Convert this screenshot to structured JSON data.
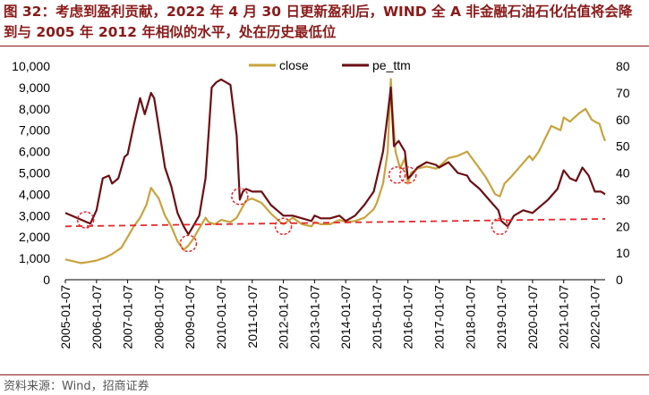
{
  "header": {
    "title": "图 32：考虑到盈利贡献，2022 年 4 月 30 日更新盈利后，WIND 全 A 非金融石油石化估值将会降到与 2005 年 2012 年相似的水平，处在历史最低位"
  },
  "footer": {
    "source": "资料来源：Wind，招商证券"
  },
  "colors": {
    "close": "#C9A33D",
    "pe_ttm": "#6B0F14",
    "reference": "#E8262C",
    "title": "#8B1A1A"
  },
  "chart_data": {
    "type": "line",
    "title": "",
    "legend": {
      "position": "top-center",
      "entries": [
        "close",
        "pe_ttm"
      ]
    },
    "categories": [
      "2005-01-07",
      "2006-01-07",
      "2007-01-07",
      "2008-01-07",
      "2009-01-07",
      "2010-01-07",
      "2011-01-07",
      "2012-01-07",
      "2013-01-07",
      "2014-01-07",
      "2015-01-07",
      "2016-01-07",
      "2017-01-07",
      "2018-01-07",
      "2019-01-07",
      "2020-01-07",
      "2021-01-07",
      "2022-01-07"
    ],
    "x": {
      "min": 2005.0,
      "max": 2022.33
    },
    "y_left": {
      "min": 0,
      "max": 10000,
      "ticks": [
        "0",
        "1,000",
        "2,000",
        "3,000",
        "4,000",
        "5,000",
        "6,000",
        "7,000",
        "8,000",
        "9,000",
        "10,000"
      ]
    },
    "y_right": {
      "min": 0,
      "max": 80,
      "ticks": [
        "0",
        "10",
        "20",
        "30",
        "40",
        "50",
        "60",
        "70",
        "80"
      ]
    },
    "series": [
      {
        "name": "close",
        "axis": "left",
        "x": [
          2005.0,
          2005.3,
          2005.5,
          2005.7,
          2006.0,
          2006.3,
          2006.5,
          2006.8,
          2007.0,
          2007.2,
          2007.4,
          2007.6,
          2007.75,
          2007.85,
          2008.0,
          2008.2,
          2008.4,
          2008.6,
          2008.8,
          2008.95,
          2009.1,
          2009.3,
          2009.5,
          2009.6,
          2009.8,
          2010.0,
          2010.3,
          2010.5,
          2010.8,
          2011.0,
          2011.3,
          2011.6,
          2011.9,
          2012.0,
          2012.3,
          2012.6,
          2012.9,
          2013.0,
          2013.2,
          2013.5,
          2013.8,
          2014.0,
          2014.3,
          2014.6,
          2014.9,
          2015.0,
          2015.2,
          2015.35,
          2015.45,
          2015.5,
          2015.6,
          2015.75,
          2015.9,
          2016.0,
          2016.1,
          2016.3,
          2016.6,
          2016.9,
          2017.0,
          2017.3,
          2017.6,
          2017.9,
          2018.0,
          2018.2,
          2018.5,
          2018.8,
          2018.95,
          2019.1,
          2019.3,
          2019.6,
          2019.9,
          2020.0,
          2020.2,
          2020.4,
          2020.6,
          2020.9,
          2021.0,
          2021.2,
          2021.5,
          2021.7,
          2021.9,
          2022.0,
          2022.15,
          2022.25,
          2022.33
        ],
        "y": [
          950,
          850,
          780,
          820,
          900,
          1050,
          1200,
          1500,
          2000,
          2500,
          2900,
          3500,
          4300,
          4100,
          3800,
          3000,
          2500,
          1800,
          1400,
          1600,
          1900,
          2400,
          2900,
          2700,
          2600,
          2800,
          2700,
          2900,
          3700,
          3800,
          3600,
          3100,
          2700,
          2600,
          2900,
          2600,
          2500,
          2700,
          2600,
          2600,
          2800,
          2700,
          2750,
          2900,
          3300,
          3600,
          4500,
          6000,
          9400,
          8000,
          6000,
          5200,
          5700,
          4500,
          5000,
          5200,
          5300,
          5200,
          5300,
          5700,
          5800,
          6000,
          5800,
          5400,
          4800,
          4000,
          3900,
          4500,
          4800,
          5300,
          5800,
          5600,
          6000,
          6600,
          7200,
          7000,
          7600,
          7400,
          7800,
          8000,
          7500,
          7400,
          7300,
          6800,
          6500
        ]
      },
      {
        "name": "pe_ttm",
        "axis": "right",
        "x": [
          2005.0,
          2005.2,
          2005.4,
          2005.6,
          2005.8,
          2006.0,
          2006.2,
          2006.4,
          2006.5,
          2006.7,
          2006.9,
          2007.0,
          2007.2,
          2007.4,
          2007.55,
          2007.75,
          2007.85,
          2008.0,
          2008.2,
          2008.4,
          2008.6,
          2008.8,
          2008.95,
          2009.1,
          2009.3,
          2009.5,
          2009.6,
          2009.7,
          2009.85,
          2010.0,
          2010.3,
          2010.5,
          2010.6,
          2010.7,
          2010.8,
          2011.0,
          2011.3,
          2011.6,
          2011.9,
          2012.0,
          2012.3,
          2012.6,
          2012.9,
          2013.0,
          2013.2,
          2013.5,
          2013.8,
          2014.0,
          2014.3,
          2014.6,
          2014.9,
          2015.0,
          2015.2,
          2015.35,
          2015.45,
          2015.55,
          2015.7,
          2015.9,
          2016.0,
          2016.1,
          2016.3,
          2016.6,
          2016.9,
          2017.0,
          2017.3,
          2017.6,
          2017.9,
          2018.0,
          2018.3,
          2018.6,
          2018.9,
          2019.0,
          2019.2,
          2019.4,
          2019.7,
          2020.0,
          2020.2,
          2020.5,
          2020.8,
          2021.0,
          2021.2,
          2021.4,
          2021.6,
          2021.8,
          2022.0,
          2022.2,
          2022.33
        ],
        "y": [
          25,
          24,
          23,
          22,
          21,
          26,
          38,
          39,
          36,
          38,
          46,
          47,
          58,
          68,
          62,
          70,
          68,
          57,
          42,
          35,
          25,
          20,
          17,
          20,
          24,
          38,
          55,
          72,
          74,
          75,
          73,
          54,
          30,
          33,
          34,
          33,
          33,
          28,
          25,
          24,
          24,
          23,
          22,
          24,
          23,
          23,
          24,
          22,
          24,
          28,
          33,
          38,
          48,
          62,
          72,
          50,
          52,
          48,
          38,
          39,
          42,
          44,
          43,
          42,
          44,
          40,
          39,
          37,
          34,
          30,
          26,
          22,
          20,
          24,
          26,
          25,
          27,
          30,
          34,
          41,
          38,
          37,
          42,
          39,
          33,
          33,
          32
        ]
      },
      {
        "name": "reference",
        "axis": "left",
        "style": "dashed",
        "x": [
          2005.0,
          2022.33
        ],
        "y": [
          2500,
          2850
        ]
      }
    ],
    "markers": [
      {
        "label": "circle",
        "x": 2005.65,
        "y": 2800
      },
      {
        "label": "circle",
        "x": 2008.95,
        "y": 1700
      },
      {
        "label": "circle",
        "x": 2010.6,
        "y": 3900
      },
      {
        "label": "circle",
        "x": 2012.0,
        "y": 2500
      },
      {
        "label": "circle",
        "x": 2015.65,
        "y": 4900
      },
      {
        "label": "circle",
        "x": 2016.0,
        "y": 4900
      },
      {
        "label": "circle",
        "x": 2018.95,
        "y": 2500
      }
    ]
  }
}
